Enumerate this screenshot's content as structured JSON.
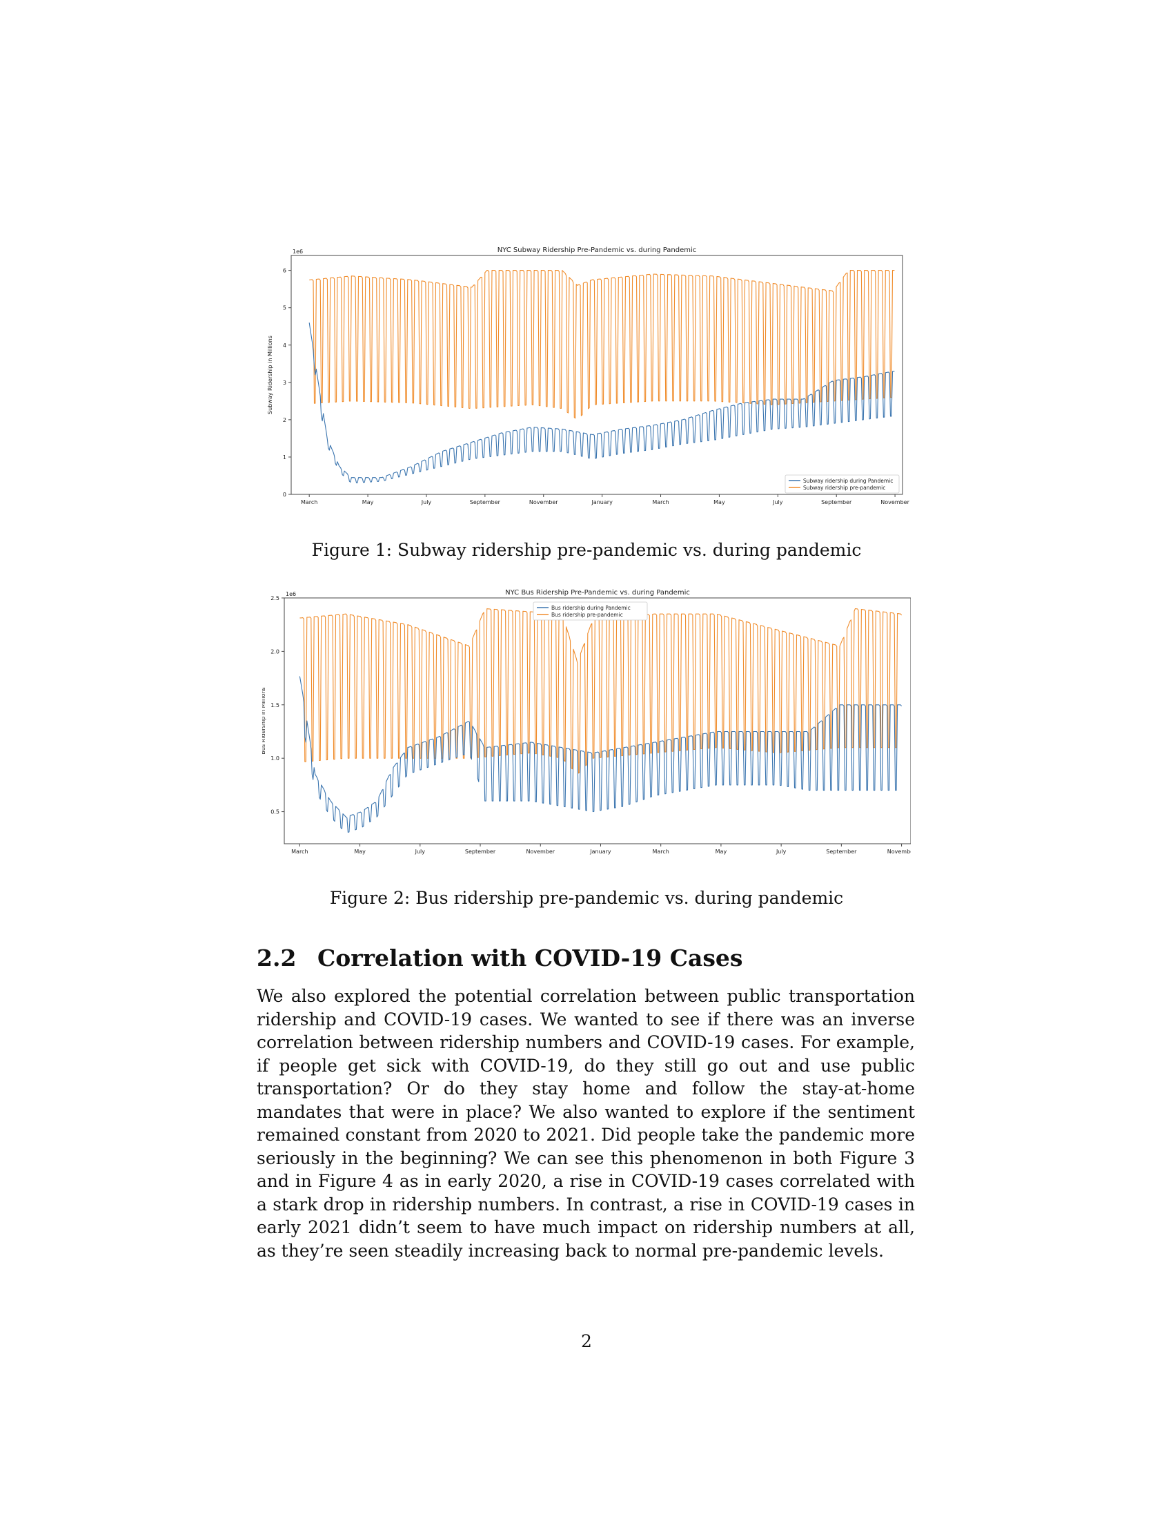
{
  "figures": [
    {
      "caption": "Figure 1: Subway ridership pre-pandemic vs. during pandemic",
      "chart_data": {
        "type": "line",
        "title": "NYC Subway Ridership Pre-Pandemic vs. during Pandemic",
        "ylabel": "Subway Ridership in Millions",
        "xlabel": "",
        "y_multiplier": "1e6",
        "ylim": [
          0,
          6.4
        ],
        "yticks": [
          0,
          1,
          2,
          3,
          4,
          5,
          6
        ],
        "ytick_labels": [
          "0",
          "1",
          "2",
          "3",
          "4",
          "5",
          "6"
        ],
        "x_tick_labels": [
          "March",
          "May",
          "July",
          "September",
          "November",
          "January",
          "March",
          "May",
          "July",
          "September",
          "November"
        ],
        "legend_position": "lower-right",
        "series": [
          {
            "name": "Subway ridership during Pandemic",
            "color": "#3b75af",
            "weekday_profile": [
              [
                0,
                5.5
              ],
              [
                0.3,
                5.2
              ],
              [
                0.6,
                4.6
              ],
              [
                0.9,
                3.0
              ],
              [
                1.2,
                1.5
              ],
              [
                1.6,
                0.75
              ],
              [
                2.0,
                0.45
              ],
              [
                3.0,
                0.45
              ],
              [
                4.0,
                0.75
              ],
              [
                5.0,
                1.15
              ],
              [
                6.0,
                1.4
              ],
              [
                7.0,
                1.65
              ],
              [
                8.0,
                1.8
              ],
              [
                9.0,
                1.75
              ],
              [
                10.0,
                1.6
              ],
              [
                11.0,
                1.75
              ],
              [
                12.0,
                1.85
              ],
              [
                13.0,
                2.0
              ],
              [
                14.0,
                2.25
              ],
              [
                15.0,
                2.45
              ],
              [
                16.0,
                2.55
              ],
              [
                17.0,
                2.55
              ],
              [
                18.0,
                3.05
              ],
              [
                19.0,
                3.15
              ],
              [
                20.0,
                3.3
              ]
            ],
            "weekend_profile": [
              [
                0,
                5.5
              ],
              [
                0.3,
                5.2
              ],
              [
                0.6,
                4.6
              ],
              [
                0.9,
                2.5
              ],
              [
                1.2,
                1.3
              ],
              [
                1.6,
                0.6
              ],
              [
                2.0,
                0.3
              ],
              [
                3.0,
                0.35
              ],
              [
                4.0,
                0.55
              ],
              [
                5.0,
                0.75
              ],
              [
                6.0,
                0.95
              ],
              [
                7.0,
                1.05
              ],
              [
                8.0,
                1.15
              ],
              [
                9.0,
                1.15
              ],
              [
                10.0,
                0.95
              ],
              [
                11.0,
                1.1
              ],
              [
                12.0,
                1.2
              ],
              [
                13.0,
                1.35
              ],
              [
                14.0,
                1.45
              ],
              [
                15.0,
                1.6
              ],
              [
                16.0,
                1.75
              ],
              [
                17.0,
                1.8
              ],
              [
                18.0,
                1.9
              ],
              [
                19.0,
                2.0
              ],
              [
                20.0,
                2.1
              ]
            ]
          },
          {
            "name": "Subway ridership pre-pandemic",
            "color": "#f08c2b",
            "weekday_profile": [
              [
                0,
                5.7
              ],
              [
                2.0,
                5.85
              ],
              [
                4.0,
                5.75
              ],
              [
                6.0,
                5.55
              ],
              [
                6.5,
                6.0
              ],
              [
                9.0,
                6.0
              ],
              [
                9.5,
                5.6
              ],
              [
                10.0,
                5.75
              ],
              [
                12.0,
                5.9
              ],
              [
                14.0,
                5.85
              ],
              [
                16.0,
                5.65
              ],
              [
                18.0,
                5.45
              ],
              [
                18.5,
                6.0
              ],
              [
                20.0,
                6.0
              ]
            ],
            "weekend_profile": [
              [
                0,
                2.4
              ],
              [
                2.0,
                2.5
              ],
              [
                4.0,
                2.45
              ],
              [
                6.0,
                2.3
              ],
              [
                8.0,
                2.4
              ],
              [
                9.0,
                2.3
              ],
              [
                9.5,
                2.0
              ],
              [
                10.0,
                2.4
              ],
              [
                12.0,
                2.5
              ],
              [
                14.0,
                2.5
              ],
              [
                16.0,
                2.4
              ],
              [
                18.0,
                2.5
              ],
              [
                20.0,
                2.6
              ]
            ]
          }
        ]
      }
    },
    {
      "caption": "Figure 2: Bus ridership pre-pandemic vs. during pandemic",
      "chart_data": {
        "type": "line",
        "title": "NYC Bus Ridership Pre-Pandemic vs. during Pandemic",
        "ylabel": "Bus Ridership in Millions",
        "xlabel": "",
        "y_multiplier": "1e6",
        "ylim": [
          0.2,
          2.5
        ],
        "yticks": [
          0.5,
          1.0,
          1.5,
          2.0,
          2.5
        ],
        "ytick_labels": [
          "0.5",
          "1.0",
          "1.5",
          "2.0",
          "2.5"
        ],
        "x_tick_labels": [
          "March",
          "May",
          "July",
          "September",
          "November",
          "January",
          "March",
          "May",
          "July",
          "September",
          "November"
        ],
        "legend_position": "upper-center",
        "series": [
          {
            "name": "Bus ridership during Pandemic",
            "color": "#3b75af",
            "weekday_profile": [
              [
                0,
                2.25
              ],
              [
                0.3,
                2.1
              ],
              [
                0.6,
                1.6
              ],
              [
                1.0,
                0.85
              ],
              [
                1.5,
                0.6
              ],
              [
                2.0,
                0.45
              ],
              [
                2.5,
                0.5
              ],
              [
                3.0,
                0.6
              ],
              [
                3.5,
                0.9
              ],
              [
                4.0,
                1.1
              ],
              [
                5.0,
                1.2
              ],
              [
                6.0,
                1.35
              ],
              [
                6.5,
                1.1
              ],
              [
                8.0,
                1.15
              ],
              [
                9.0,
                1.1
              ],
              [
                10.0,
                1.05
              ],
              [
                11.0,
                1.1
              ],
              [
                12.0,
                1.15
              ],
              [
                13.0,
                1.2
              ],
              [
                14.0,
                1.25
              ],
              [
                15.0,
                1.25
              ],
              [
                16.0,
                1.25
              ],
              [
                17.0,
                1.25
              ],
              [
                18.0,
                1.5
              ],
              [
                20.0,
                1.5
              ]
            ],
            "weekend_profile": [
              [
                0,
                2.2
              ],
              [
                0.3,
                2.0
              ],
              [
                0.6,
                1.3
              ],
              [
                1.0,
                0.7
              ],
              [
                1.5,
                0.45
              ],
              [
                2.0,
                0.3
              ],
              [
                2.5,
                0.35
              ],
              [
                3.0,
                0.45
              ],
              [
                3.5,
                0.65
              ],
              [
                4.0,
                0.85
              ],
              [
                5.0,
                0.95
              ],
              [
                6.0,
                1.05
              ],
              [
                6.5,
                0.6
              ],
              [
                8.0,
                0.6
              ],
              [
                9.0,
                0.55
              ],
              [
                10.0,
                0.5
              ],
              [
                11.0,
                0.55
              ],
              [
                12.0,
                0.65
              ],
              [
                13.0,
                0.7
              ],
              [
                14.0,
                0.75
              ],
              [
                15.0,
                0.75
              ],
              [
                16.0,
                0.75
              ],
              [
                17.0,
                0.7
              ],
              [
                18.0,
                0.7
              ],
              [
                20.0,
                0.7
              ]
            ]
          },
          {
            "name": "Bus ridership pre-pandemic",
            "color": "#f08c2b",
            "weekday_profile": [
              [
                0,
                2.3
              ],
              [
                2.0,
                2.35
              ],
              [
                4.0,
                2.25
              ],
              [
                6.0,
                2.05
              ],
              [
                6.5,
                2.4
              ],
              [
                9.0,
                2.35
              ],
              [
                9.5,
                1.9
              ],
              [
                10.0,
                2.3
              ],
              [
                12.0,
                2.35
              ],
              [
                14.0,
                2.35
              ],
              [
                16.0,
                2.2
              ],
              [
                18.0,
                2.05
              ],
              [
                18.5,
                2.4
              ],
              [
                20.0,
                2.35
              ]
            ],
            "weekend_profile": [
              [
                0,
                0.95
              ],
              [
                2.0,
                1.0
              ],
              [
                4.0,
                1.0
              ],
              [
                6.0,
                1.0
              ],
              [
                8.0,
                1.05
              ],
              [
                9.0,
                1.0
              ],
              [
                9.5,
                0.85
              ],
              [
                10.0,
                1.0
              ],
              [
                12.0,
                1.05
              ],
              [
                14.0,
                1.1
              ],
              [
                16.0,
                1.05
              ],
              [
                18.0,
                1.1
              ],
              [
                20.0,
                1.1
              ]
            ]
          }
        ]
      }
    }
  ],
  "section": {
    "number": "2.2",
    "title": "Correlation with COVID-19 Cases",
    "body": "We also explored the potential correlation between public transportation ridership and COVID-19 cases. We wanted to see if there was an inverse correlation between ridership numbers and COVID-19 cases. For example, if people get sick with COVID-19, do they still go out and use public transportation? Or do they stay home and follow the stay-at-home mandates that were in place? We also wanted to explore if the sentiment remained constant from 2020 to 2021. Did people take the pandemic more seriously in the beginning? We can see this phenomenon in both Figure 3 and in Figure 4 as in early 2020, a rise in COVID-19 cases correlated with a stark drop in ridership numbers. In contrast, a rise in COVID-19 cases in early 2021 didn’t seem to have much impact on ridership numbers at all, as they’re seen steadily increasing back to normal pre-pandemic levels."
  },
  "page_number": "2"
}
